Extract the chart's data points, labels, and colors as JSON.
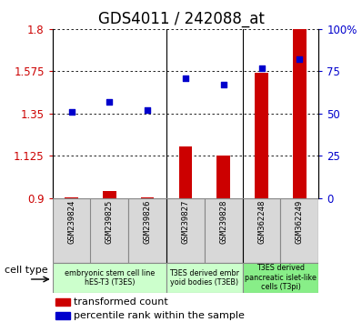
{
  "title": "GDS4011 / 242088_at",
  "samples": [
    "GSM239824",
    "GSM239825",
    "GSM239826",
    "GSM239827",
    "GSM239828",
    "GSM362248",
    "GSM362249"
  ],
  "transformed_count": [
    0.902,
    0.937,
    0.903,
    1.175,
    1.125,
    1.565,
    1.8
  ],
  "percentile_rank": [
    51,
    57,
    52,
    71,
    67,
    77,
    82
  ],
  "ylim_left": [
    0.9,
    1.8
  ],
  "ylim_right": [
    0,
    100
  ],
  "yticks_left": [
    0.9,
    1.125,
    1.35,
    1.575,
    1.8
  ],
  "ytick_labels_left": [
    "0.9",
    "1.125",
    "1.35",
    "1.575",
    "1.8"
  ],
  "yticks_right": [
    0,
    25,
    50,
    75,
    100
  ],
  "ytick_labels_right": [
    "0",
    "25",
    "50",
    "75",
    "100%"
  ],
  "bar_color": "#cc0000",
  "dot_color": "#0000cc",
  "group_colors": [
    "#ccffcc",
    "#ccffcc",
    "#88ee88"
  ],
  "group_labels": [
    "embryonic stem cell line\nhES-T3 (T3ES)",
    "T3ES derived embr\nyoid bodies (T3EB)",
    "T3ES derived\npancreatic islet-like\ncells (T3pi)"
  ],
  "group_starts": [
    0,
    3,
    5
  ],
  "group_ends": [
    3,
    5,
    7
  ],
  "title_fontsize": 12,
  "tick_label_fontsize": 8.5,
  "bar_width": 0.35,
  "label_fontsize": 7,
  "cell_type_fontsize": 8,
  "legend_fontsize": 8
}
